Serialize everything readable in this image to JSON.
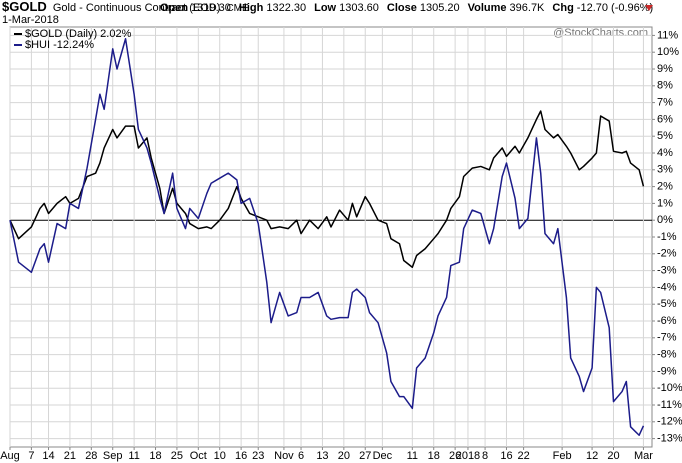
{
  "chart_data": {
    "type": "line",
    "symbol": "$GOLD",
    "title": "Gold - Continuous Contract (EOD)",
    "exchange": "CME",
    "date": "1-Mar-2018",
    "stats": [
      {
        "label": "Open",
        "value": "1319.30"
      },
      {
        "label": "High",
        "value": "1322.30"
      },
      {
        "label": "Low",
        "value": "1303.60"
      },
      {
        "label": "Close",
        "value": "1305.20"
      },
      {
        "label": "Volume",
        "value": "396.7K"
      },
      {
        "label": "Chg",
        "value": "-12.70 (-0.96%)"
      }
    ],
    "watermark": "@StockCharts.com",
    "x": [
      0,
      2,
      5,
      7,
      8,
      9,
      11,
      13,
      14,
      16,
      18,
      20,
      21,
      22,
      24,
      25,
      27,
      29,
      30,
      32,
      33,
      35,
      36,
      38,
      39,
      41,
      42,
      44,
      46,
      47,
      49,
      51,
      53,
      54,
      56,
      58,
      60,
      61,
      63,
      65,
      67,
      68,
      70,
      72,
      74,
      75,
      77,
      79,
      80,
      81,
      83,
      84,
      86,
      88,
      89,
      91,
      92,
      94,
      95,
      97,
      99,
      100,
      102,
      103,
      105,
      106,
      108,
      110,
      112,
      113,
      115,
      116,
      118,
      119,
      121,
      123,
      124,
      125,
      127,
      128,
      130,
      131,
      133,
      134,
      136,
      137,
      138,
      140,
      141,
      143,
      144,
      145,
      147,
      148
    ],
    "xlim": [
      0,
      150
    ],
    "xticks": [
      {
        "value": 0,
        "label": "Aug"
      },
      {
        "value": 5,
        "label": "7"
      },
      {
        "value": 9,
        "label": "14"
      },
      {
        "value": 14,
        "label": "21"
      },
      {
        "value": 19,
        "label": "28"
      },
      {
        "value": 24,
        "label": "Sep"
      },
      {
        "value": 29,
        "label": "11"
      },
      {
        "value": 34,
        "label": "18"
      },
      {
        "value": 39,
        "label": "25"
      },
      {
        "value": 44,
        "label": "Oct"
      },
      {
        "value": 49,
        "label": "10"
      },
      {
        "value": 54,
        "label": "16"
      },
      {
        "value": 58,
        "label": "23"
      },
      {
        "value": 64,
        "label": "Nov"
      },
      {
        "value": 68,
        "label": "6"
      },
      {
        "value": 73,
        "label": "13"
      },
      {
        "value": 78,
        "label": "20"
      },
      {
        "value": 83,
        "label": "27"
      },
      {
        "value": 87,
        "label": "Dec"
      },
      {
        "value": 94,
        "label": "11"
      },
      {
        "value": 99,
        "label": "18"
      },
      {
        "value": 104,
        "label": "26"
      },
      {
        "value": 107,
        "label": "2018"
      },
      {
        "value": 111,
        "label": "8"
      },
      {
        "value": 116,
        "label": "16"
      },
      {
        "value": 120,
        "label": "22"
      },
      {
        "value": 129,
        "label": "Feb"
      },
      {
        "value": 136,
        "label": "12"
      },
      {
        "value": 141,
        "label": "20"
      },
      {
        "value": 148,
        "label": "Mar"
      }
    ],
    "ylim": [
      -13.5,
      11.5
    ],
    "yticks": [
      {
        "value": 11,
        "label": "11%"
      },
      {
        "value": 10,
        "label": "10%"
      },
      {
        "value": 9,
        "label": "9%"
      },
      {
        "value": 8,
        "label": "8%"
      },
      {
        "value": 7,
        "label": "7%"
      },
      {
        "value": 6,
        "label": "6%"
      },
      {
        "value": 5,
        "label": "5%"
      },
      {
        "value": 4,
        "label": "4%"
      },
      {
        "value": 3,
        "label": "3%"
      },
      {
        "value": 2,
        "label": "2%"
      },
      {
        "value": 1,
        "label": "1%"
      },
      {
        "value": 0,
        "label": "0%"
      },
      {
        "value": -1,
        "label": "-1%"
      },
      {
        "value": -2,
        "label": "-2%"
      },
      {
        "value": -3,
        "label": "-3%"
      },
      {
        "value": -4,
        "label": "-4%"
      },
      {
        "value": -5,
        "label": "-5%"
      },
      {
        "value": -6,
        "label": "-6%"
      },
      {
        "value": -7,
        "label": "-7%"
      },
      {
        "value": -8,
        "label": "-8%"
      },
      {
        "value": -9,
        "label": "-9%"
      },
      {
        "value": -10,
        "label": "-10%"
      },
      {
        "value": -11,
        "label": "-11%"
      },
      {
        "value": -12,
        "label": "-12%"
      },
      {
        "value": -13,
        "label": "-13%"
      }
    ],
    "grid": true,
    "series": [
      {
        "name": "$GOLD (Daily) 2.02%",
        "color": "#000000",
        "values": [
          0,
          -1.1,
          -0.4,
          0.7,
          1.0,
          0.4,
          1.0,
          1.4,
          1.0,
          1.3,
          2.6,
          2.8,
          3.4,
          4.3,
          5.4,
          4.9,
          5.6,
          5.6,
          4.3,
          4.9,
          3.7,
          1.9,
          0.4,
          1.9,
          1.0,
          0.4,
          -0.2,
          -0.5,
          -0.4,
          -0.5,
          0,
          0.7,
          2.0,
          1.3,
          0.4,
          0.2,
          0,
          -0.5,
          -0.4,
          -0.5,
          0,
          -0.8,
          0,
          -0.5,
          0.2,
          -0.4,
          0.6,
          0,
          1.0,
          0.2,
          1.4,
          1.0,
          0,
          -0.2,
          -1.1,
          -1.4,
          -2.4,
          -2.8,
          -2.1,
          -1.7,
          -1.1,
          -0.8,
          0,
          0.7,
          1.4,
          2.6,
          3.1,
          3.2,
          3.0,
          3.7,
          4.3,
          3.8,
          4.4,
          4.0,
          4.9,
          6.0,
          6.5,
          5.4,
          4.9,
          5.1,
          4.4,
          4.0,
          3.0,
          3.2,
          3.7,
          4.0,
          6.2,
          5.9,
          4.1,
          4.0,
          4.1,
          3.4,
          3.0,
          2.02
        ]
      },
      {
        "name": "$HUI -12.24%",
        "color": "#1c1c8a",
        "values": [
          0,
          -2.5,
          -3.1,
          -1.7,
          -1.4,
          -2.5,
          -0.2,
          -0.5,
          1.0,
          0.7,
          3.1,
          6.0,
          7.5,
          6.6,
          10.2,
          9.0,
          10.8,
          7.5,
          5.4,
          4.3,
          3.4,
          1.3,
          0.4,
          2.8,
          0.7,
          -0.5,
          0.7,
          0.1,
          1.6,
          2.2,
          2.5,
          2.8,
          2.4,
          1.0,
          1.3,
          -0.2,
          -3.7,
          -6.1,
          -4.3,
          -5.7,
          -5.5,
          -4.6,
          -4.6,
          -4.3,
          -5.7,
          -5.9,
          -5.8,
          -5.8,
          -4.3,
          -4.1,
          -4.6,
          -5.5,
          -6.1,
          -7.9,
          -9.6,
          -10.5,
          -10.5,
          -11.2,
          -8.8,
          -8.2,
          -6.7,
          -5.7,
          -4.6,
          -2.7,
          -2.5,
          -0.5,
          0.6,
          0.4,
          -1.4,
          -0.5,
          2.6,
          3.4,
          1.3,
          -0.5,
          0.1,
          4.9,
          2.8,
          -0.8,
          -1.4,
          -0.5,
          -4.6,
          -8.2,
          -9.3,
          -10.2,
          -8.8,
          -4.0,
          -4.3,
          -6.4,
          -10.8,
          -10.2,
          -9.6,
          -12.3,
          -12.8,
          -12.24
        ]
      }
    ]
  }
}
